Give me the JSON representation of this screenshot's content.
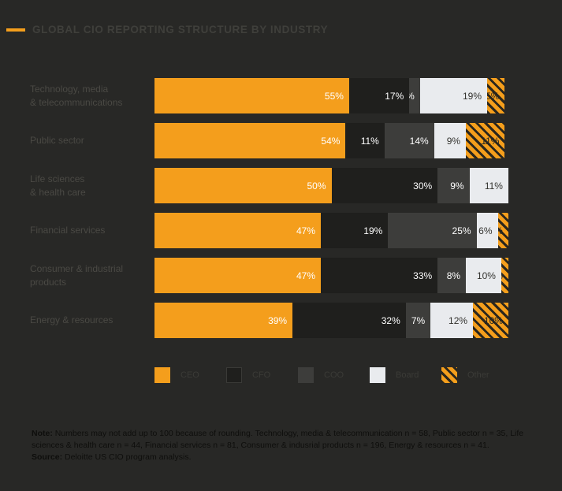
{
  "header": {
    "title": "GLOBAL CIO REPORTING STRUCTURE BY INDUSTRY"
  },
  "colors": {
    "background": "#282826",
    "accent_orange": "#F49E1C",
    "cfo_dark": "#1F1F1D",
    "coo_gray": "#3D3D3B",
    "board_light": "#E9EBEE",
    "title_text": "#3F3F3B",
    "category_text": "#4A4944",
    "note_text": "#0E0E0C"
  },
  "chart_data": {
    "type": "bar",
    "orientation": "horizontal-stacked",
    "title": "GLOBAL CIO REPORTING STRUCTURE BY INDUSTRY",
    "xlim": [
      0,
      100
    ],
    "value_suffix": "%",
    "grid": false,
    "legend_position": "bottom",
    "categories": [
      "Technology, media & telecommunications",
      "Public sector",
      "Life sciences & health care",
      "Financial services",
      "Consumer & industrial products",
      "Energy & resources"
    ],
    "category_display": [
      [
        "Technology, media",
        "& telecommunications"
      ],
      [
        "Public sector"
      ],
      [
        "Life sciences",
        "& health care"
      ],
      [
        "Financial services"
      ],
      [
        "Consumer & industrial",
        "products"
      ],
      [
        "Energy & resources"
      ]
    ],
    "series": [
      {
        "name": "CEO",
        "values": [
          55,
          54,
          50,
          47,
          47,
          39
        ],
        "color": "#F49E1C",
        "label_color": "#FFFFFF",
        "hatched": false
      },
      {
        "name": "CFO",
        "values": [
          17,
          11,
          30,
          19,
          33,
          32
        ],
        "color": "#1F1F1D",
        "label_color": "#FFFFFF",
        "hatched": false
      },
      {
        "name": "COO",
        "values": [
          3,
          14,
          9,
          25,
          8,
          7
        ],
        "color": "#3D3D3B",
        "label_color": "#FFFFFF",
        "hatched": false
      },
      {
        "name": "Board",
        "values": [
          19,
          9,
          11,
          6,
          10,
          12
        ],
        "color": "#E9EBEE",
        "label_color": "#33332F",
        "hatched": false
      },
      {
        "name": "Other",
        "values": [
          5,
          11,
          0,
          3,
          2,
          10
        ],
        "color": "#F49E1C",
        "label_color": "#23231F",
        "hatched": true
      }
    ]
  },
  "legend": {
    "items": [
      {
        "label": "CEO",
        "color": "#F49E1C",
        "hatched": false,
        "outlined": false
      },
      {
        "label": "CFO",
        "color": "#1F1F1D",
        "hatched": false,
        "outlined": true
      },
      {
        "label": "COO",
        "color": "#3D3D3B",
        "hatched": false,
        "outlined": false
      },
      {
        "label": "Board",
        "color": "#E9EBEE",
        "hatched": false,
        "outlined": false
      },
      {
        "label": "Other",
        "color": "#F49E1C",
        "hatched": true,
        "outlined": false
      }
    ]
  },
  "note": {
    "label": "Note:",
    "text": " Numbers may not add up to 100 because of rounding. Technology, media & telecommunication n = 58, Public sector n = 35, Life sciences & health care n = 44, Financial services n = 81, Consumer & indusrial products n = 196, Energy & resources n = 41.",
    "source_label": "Source:",
    "source_text": " Deloitte US CIO program analysis."
  }
}
